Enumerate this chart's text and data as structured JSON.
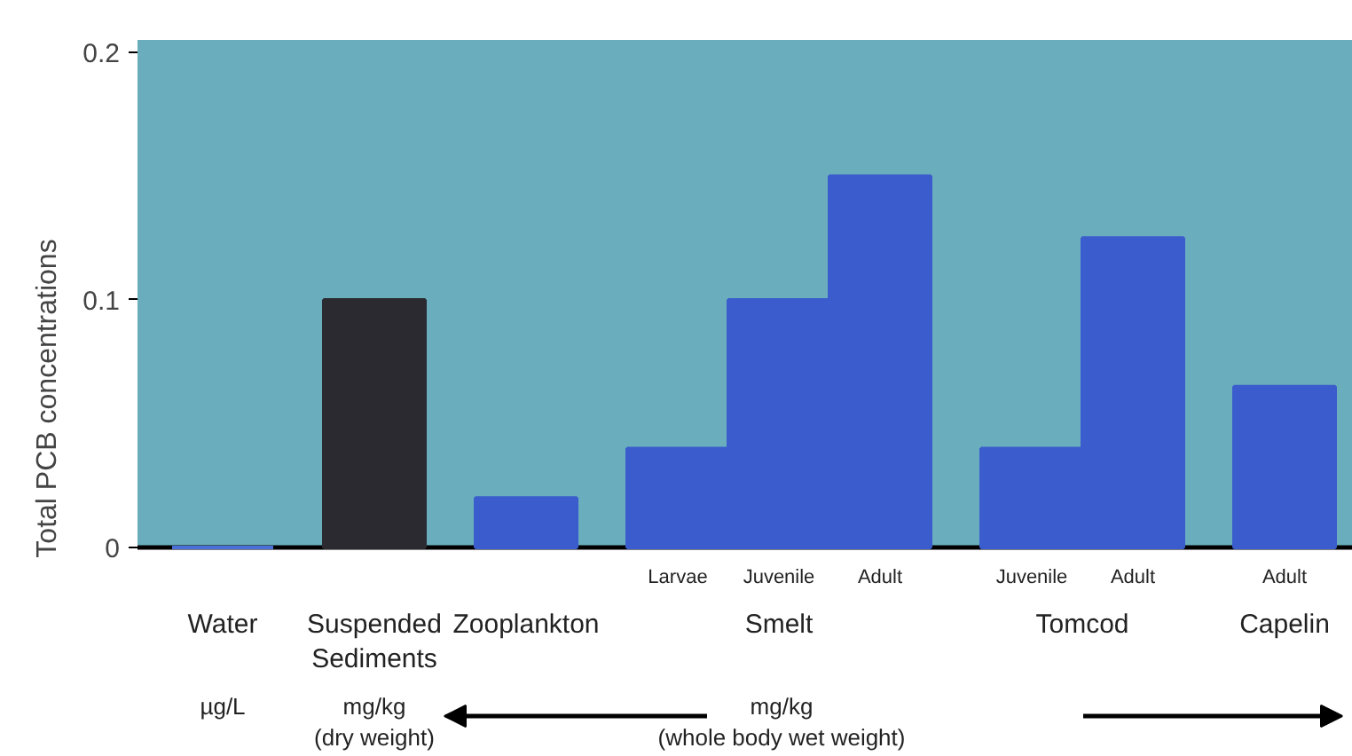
{
  "chart_data": {
    "type": "bar",
    "ylabel": "Total PCB concentrations",
    "categories": [
      null,
      null,
      null,
      "Larvae",
      "Juvenile",
      "Adult",
      "Juvenile",
      "Adult",
      "Adult"
    ],
    "values": [
      0,
      0.1,
      0.02,
      0.04,
      0.1,
      0.15,
      0.04,
      0.125,
      0.065
    ],
    "colors": [
      "#4a6fd8",
      "#2a2a30",
      "#3a5ccc",
      "#3a5ccc",
      "#3a5ccc",
      "#3a5ccc",
      "#3a5ccc",
      "#3a5ccc",
      "#3a5ccc"
    ],
    "ylim": [
      0,
      0.205
    ],
    "yticks": [
      0,
      0.1,
      0.2
    ],
    "grid": false,
    "annotations": [
      "Water",
      "Suspended\nSediments",
      "Zooplankton",
      "Smelt",
      "Tomcod",
      "Capelin",
      "µg/L",
      "mg/kg\n(dry weight)",
      "mg/kg\n(whole body wet weight)"
    ]
  }
}
